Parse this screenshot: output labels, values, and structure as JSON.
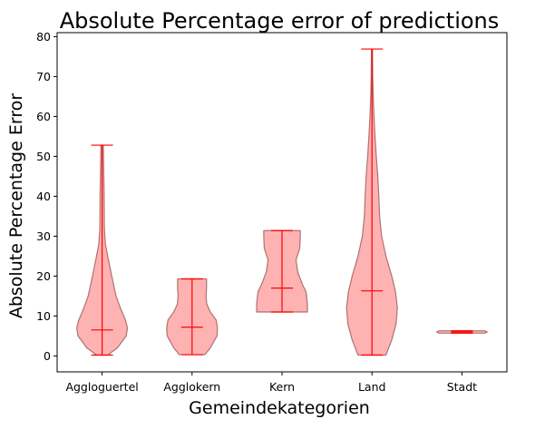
{
  "chart_data": {
    "type": "violin",
    "title": "Absolute Percentage error of predictions",
    "xlabel": "Gemeindekategorien",
    "ylabel": "Absolute Percentage Error",
    "categories": [
      "Aggloguertel",
      "Agglokern",
      "Kern",
      "Land",
      "Stadt"
    ],
    "ylim": [
      -4,
      81
    ],
    "yticks": [
      0,
      10,
      20,
      30,
      40,
      50,
      60,
      70,
      80
    ],
    "grid": false,
    "colors": {
      "body_fill": "#ff7f7f",
      "body_edge": "#9a5a5a",
      "stats_line": "#ff0000"
    },
    "series": [
      {
        "category": "Aggloguertel",
        "min": 0.2,
        "median": 6.5,
        "max": 52.8,
        "profile": [
          [
            0.2,
            0.22
          ],
          [
            2,
            0.6
          ],
          [
            5,
            0.95
          ],
          [
            7,
            1.0
          ],
          [
            9,
            0.92
          ],
          [
            12,
            0.72
          ],
          [
            15,
            0.55
          ],
          [
            20,
            0.38
          ],
          [
            25,
            0.22
          ],
          [
            28,
            0.13
          ],
          [
            32,
            0.09
          ],
          [
            40,
            0.08
          ],
          [
            48,
            0.06
          ],
          [
            52.8,
            0.05
          ]
        ]
      },
      {
        "category": "Agglokern",
        "min": 0.3,
        "median": 7.2,
        "max": 19.3,
        "profile": [
          [
            0.3,
            0.5
          ],
          [
            2,
            0.72
          ],
          [
            5,
            0.98
          ],
          [
            7,
            1.0
          ],
          [
            9,
            0.95
          ],
          [
            11,
            0.72
          ],
          [
            13,
            0.58
          ],
          [
            15,
            0.55
          ],
          [
            17,
            0.57
          ],
          [
            19.3,
            0.57
          ]
        ]
      },
      {
        "category": "Kern",
        "min": 11,
        "median": 17,
        "max": 31.4,
        "profile": [
          [
            11,
            1.0
          ],
          [
            13,
            1.0
          ],
          [
            16,
            0.95
          ],
          [
            18,
            0.8
          ],
          [
            21,
            0.62
          ],
          [
            24,
            0.55
          ],
          [
            27,
            0.7
          ],
          [
            30,
            0.72
          ],
          [
            31.4,
            0.72
          ]
        ]
      },
      {
        "category": "Land",
        "min": 0.2,
        "median": 16.3,
        "max": 76.9,
        "profile": [
          [
            0.2,
            0.55
          ],
          [
            4,
            0.78
          ],
          [
            8,
            0.95
          ],
          [
            12,
            1.0
          ],
          [
            16,
            0.93
          ],
          [
            20,
            0.78
          ],
          [
            25,
            0.55
          ],
          [
            30,
            0.38
          ],
          [
            35,
            0.3
          ],
          [
            40,
            0.27
          ],
          [
            45,
            0.23
          ],
          [
            50,
            0.17
          ],
          [
            55,
            0.12
          ],
          [
            60,
            0.08
          ],
          [
            65,
            0.05
          ],
          [
            70,
            0.03
          ],
          [
            76.9,
            0.02
          ]
        ]
      },
      {
        "category": "Stadt",
        "min": 5.7,
        "median": 6.0,
        "max": 6.3,
        "profile": [
          [
            5.7,
            0.9
          ],
          [
            6.0,
            1.0
          ],
          [
            6.3,
            0.9
          ]
        ]
      }
    ]
  }
}
